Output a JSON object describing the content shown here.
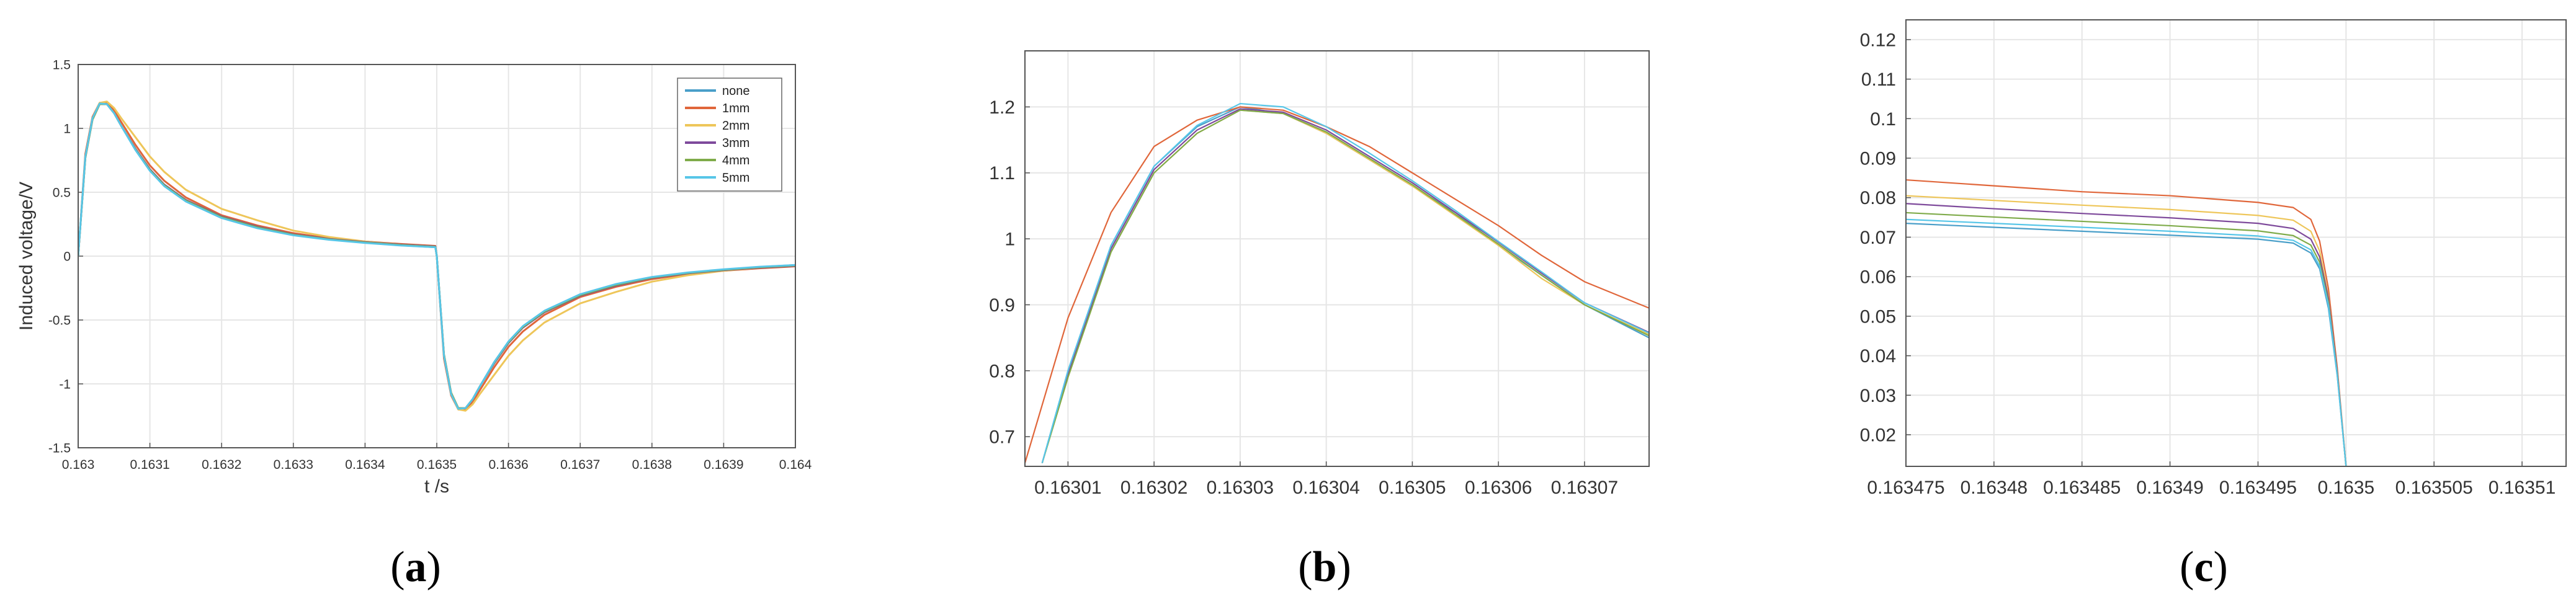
{
  "colors": {
    "none": "#4a9fc9",
    "1mm": "#e0663a",
    "2mm": "#eec65a",
    "3mm": "#7e4a9b",
    "4mm": "#7fab4a",
    "5mm": "#57c6e8",
    "grid": "#e6e6e6",
    "axis": "#555555"
  },
  "captions": [
    {
      "open": "(",
      "letter": "a",
      "close": ")"
    },
    {
      "open": "(",
      "letter": "b",
      "close": ")"
    },
    {
      "open": "(",
      "letter": "c",
      "close": ")"
    }
  ],
  "chart_data": [
    {
      "id": "a",
      "type": "line",
      "xlabel": "t /s",
      "ylabel": "Induced voltage/V",
      "xlim": [
        0.163,
        0.164
      ],
      "ylim": [
        -1.5,
        1.5
      ],
      "xticks": [
        "0.163",
        "0.1631",
        "0.1632",
        "0.1633",
        "0.1634",
        "0.1635",
        "0.1636",
        "0.1637",
        "0.1638",
        "0.1639",
        "0.164"
      ],
      "yticks": [
        "-1.5",
        "-1",
        "-0.5",
        "0",
        "0.5",
        "1",
        "1.5"
      ],
      "grid": true,
      "legend_position": "top-right",
      "legend": [
        "none",
        "1mm",
        "2mm",
        "3mm",
        "4mm",
        "5mm"
      ],
      "series": [
        {
          "name": "none",
          "x": [
            0.163,
            0.16301,
            0.16302,
            0.16303,
            0.16304,
            0.16305,
            0.16306,
            0.16308,
            0.1631,
            0.16312,
            0.16315,
            0.1632,
            0.16325,
            0.1633,
            0.16335,
            0.1634,
            0.16345,
            0.163498,
            0.1635,
            0.16351,
            0.16352,
            0.16353,
            0.16354,
            0.16355,
            0.16356,
            0.16358,
            0.1636,
            0.16362,
            0.16365,
            0.1637,
            0.16375,
            0.1638,
            0.16385,
            0.1639,
            0.16395,
            0.164
          ],
          "y": [
            0.0,
            0.78,
            1.08,
            1.195,
            1.19,
            1.12,
            1.02,
            0.83,
            0.67,
            0.55,
            0.43,
            0.3,
            0.22,
            0.165,
            0.13,
            0.105,
            0.085,
            0.07,
            0.0,
            -0.78,
            -1.08,
            -1.195,
            -1.19,
            -1.12,
            -1.02,
            -0.83,
            -0.67,
            -0.55,
            -0.43,
            -0.3,
            -0.22,
            -0.165,
            -0.13,
            -0.105,
            -0.085,
            -0.07
          ]
        },
        {
          "name": "1mm",
          "x": [
            0.163,
            0.16301,
            0.16302,
            0.16303,
            0.16304,
            0.16305,
            0.16306,
            0.16308,
            0.1631,
            0.16312,
            0.16315,
            0.1632,
            0.16325,
            0.1633,
            0.16335,
            0.1634,
            0.16345,
            0.163498,
            0.1635,
            0.16351,
            0.16352,
            0.16353,
            0.16354,
            0.16355,
            0.16356,
            0.16358,
            0.1636,
            0.16362,
            0.16365,
            0.1637,
            0.16375,
            0.1638,
            0.16385,
            0.1639,
            0.16395,
            0.164
          ],
          "y": [
            0.0,
            0.8,
            1.09,
            1.2,
            1.2,
            1.14,
            1.05,
            0.87,
            0.71,
            0.59,
            0.46,
            0.32,
            0.24,
            0.18,
            0.14,
            0.115,
            0.095,
            0.08,
            0.0,
            -0.8,
            -1.09,
            -1.2,
            -1.2,
            -1.14,
            -1.05,
            -0.87,
            -0.71,
            -0.59,
            -0.46,
            -0.32,
            -0.24,
            -0.18,
            -0.14,
            -0.115,
            -0.095,
            -0.08
          ]
        },
        {
          "name": "2mm",
          "x": [
            0.163,
            0.16301,
            0.16302,
            0.16303,
            0.16304,
            0.16305,
            0.16306,
            0.16308,
            0.1631,
            0.16312,
            0.16315,
            0.1632,
            0.16325,
            0.1633,
            0.16335,
            0.1634,
            0.16345,
            0.163498,
            0.1635,
            0.16351,
            0.16352,
            0.16353,
            0.16354,
            0.16355,
            0.16356,
            0.16358,
            0.1636,
            0.16362,
            0.16365,
            0.1637,
            0.16375,
            0.1638,
            0.16385,
            0.1639,
            0.16395,
            0.164
          ],
          "y": [
            0.0,
            0.77,
            1.08,
            1.2,
            1.21,
            1.16,
            1.08,
            0.93,
            0.78,
            0.66,
            0.52,
            0.37,
            0.28,
            0.2,
            0.15,
            0.115,
            0.09,
            0.075,
            0.0,
            -0.77,
            -1.08,
            -1.2,
            -1.21,
            -1.16,
            -1.08,
            -0.93,
            -0.78,
            -0.66,
            -0.52,
            -0.37,
            -0.28,
            -0.2,
            -0.15,
            -0.115,
            -0.09,
            -0.075
          ]
        },
        {
          "name": "3mm",
          "x": [
            0.163,
            0.16301,
            0.16302,
            0.16303,
            0.16304,
            0.16305,
            0.16306,
            0.16308,
            0.1631,
            0.16312,
            0.16315,
            0.1632,
            0.16325,
            0.1633,
            0.16335,
            0.1634,
            0.16345,
            0.163498,
            0.1635,
            0.16351,
            0.16352,
            0.16353,
            0.16354,
            0.16355,
            0.16356,
            0.16358,
            0.1636,
            0.16362,
            0.16365,
            0.1637,
            0.16375,
            0.1638,
            0.16385,
            0.1639,
            0.16395,
            0.164
          ],
          "y": [
            0.0,
            0.77,
            1.07,
            1.19,
            1.19,
            1.12,
            1.02,
            0.84,
            0.68,
            0.56,
            0.44,
            0.31,
            0.23,
            0.17,
            0.135,
            0.11,
            0.09,
            0.076,
            0.0,
            -0.77,
            -1.07,
            -1.19,
            -1.19,
            -1.12,
            -1.02,
            -0.84,
            -0.68,
            -0.56,
            -0.44,
            -0.31,
            -0.23,
            -0.17,
            -0.135,
            -0.11,
            -0.09,
            -0.076
          ]
        },
        {
          "name": "4mm",
          "x": [
            0.163,
            0.16301,
            0.16302,
            0.16303,
            0.16304,
            0.16305,
            0.16306,
            0.16308,
            0.1631,
            0.16312,
            0.16315,
            0.1632,
            0.16325,
            0.1633,
            0.16335,
            0.1634,
            0.16345,
            0.163498,
            0.1635,
            0.16351,
            0.16352,
            0.16353,
            0.16354,
            0.16355,
            0.16356,
            0.16358,
            0.1636,
            0.16362,
            0.16365,
            0.1637,
            0.16375,
            0.1638,
            0.16385,
            0.1639,
            0.16395,
            0.164
          ],
          "y": [
            0.0,
            0.77,
            1.07,
            1.19,
            1.19,
            1.12,
            1.02,
            0.835,
            0.675,
            0.555,
            0.435,
            0.305,
            0.225,
            0.167,
            0.132,
            0.107,
            0.087,
            0.073,
            0.0,
            -0.77,
            -1.07,
            -1.19,
            -1.19,
            -1.12,
            -1.02,
            -0.835,
            -0.675,
            -0.555,
            -0.435,
            -0.305,
            -0.225,
            -0.167,
            -0.132,
            -0.107,
            -0.087,
            -0.073
          ]
        },
        {
          "name": "5mm",
          "x": [
            0.163,
            0.16301,
            0.16302,
            0.16303,
            0.16304,
            0.16305,
            0.16306,
            0.16308,
            0.1631,
            0.16312,
            0.16315,
            0.1632,
            0.16325,
            0.1633,
            0.16335,
            0.1634,
            0.16345,
            0.163498,
            0.1635,
            0.16351,
            0.16352,
            0.16353,
            0.16354,
            0.16355,
            0.16356,
            0.16358,
            0.1636,
            0.16362,
            0.16365,
            0.1637,
            0.16375,
            0.1638,
            0.16385,
            0.1639,
            0.16395,
            0.164
          ],
          "y": [
            0.0,
            0.78,
            1.08,
            1.195,
            1.19,
            1.12,
            1.02,
            0.83,
            0.668,
            0.548,
            0.428,
            0.298,
            0.218,
            0.163,
            0.128,
            0.103,
            0.083,
            0.07,
            0.0,
            -0.78,
            -1.08,
            -1.195,
            -1.19,
            -1.12,
            -1.02,
            -0.83,
            -0.668,
            -0.548,
            -0.428,
            -0.298,
            -0.218,
            -0.163,
            -0.128,
            -0.103,
            -0.083,
            -0.07
          ]
        }
      ]
    },
    {
      "id": "b",
      "type": "line",
      "xlabel": "",
      "ylabel": "",
      "xlim": [
        0.163005,
        0.1630775
      ],
      "ylim": [
        0.655,
        1.285
      ],
      "xticks": [
        "0.16301",
        "0.16302",
        "0.16303",
        "0.16304",
        "0.16305",
        "0.16306",
        "0.16307"
      ],
      "yticks": [
        "0.7",
        "0.8",
        "0.9",
        "1",
        "1.1",
        "1.2"
      ],
      "grid": true,
      "series": [
        {
          "name": "none",
          "x": [
            0.163007,
            0.16301,
            0.163015,
            0.16302,
            0.163025,
            0.16303,
            0.163035,
            0.16304,
            0.163045,
            0.16305,
            0.163055,
            0.16306,
            0.163065,
            0.16307,
            0.1630775
          ],
          "y": [
            0.66,
            0.8,
            0.99,
            1.11,
            1.17,
            1.2,
            1.19,
            1.16,
            1.12,
            1.08,
            1.04,
            0.99,
            0.945,
            0.9,
            0.85
          ]
        },
        {
          "name": "1mm",
          "x": [
            0.163005,
            0.16301,
            0.163015,
            0.16302,
            0.163025,
            0.16303,
            0.163035,
            0.16304,
            0.163045,
            0.16305,
            0.163055,
            0.16306,
            0.163065,
            0.16307,
            0.1630775
          ],
          "y": [
            0.66,
            0.88,
            1.04,
            1.14,
            1.18,
            1.2,
            1.195,
            1.17,
            1.14,
            1.1,
            1.06,
            1.02,
            0.975,
            0.935,
            0.895
          ]
        },
        {
          "name": "2mm",
          "x": [
            0.163007,
            0.16301,
            0.163015,
            0.16302,
            0.163025,
            0.16303,
            0.163035,
            0.16304,
            0.163045,
            0.16305,
            0.163055,
            0.16306,
            0.163065,
            0.16307,
            0.1630775
          ],
          "y": [
            0.66,
            0.79,
            0.98,
            1.1,
            1.16,
            1.195,
            1.19,
            1.16,
            1.12,
            1.08,
            1.035,
            0.99,
            0.94,
            0.9,
            0.855
          ]
        },
        {
          "name": "3mm",
          "x": [
            0.163007,
            0.16301,
            0.163015,
            0.16302,
            0.163025,
            0.16303,
            0.163035,
            0.16304,
            0.163045,
            0.16305,
            0.163055,
            0.16306,
            0.163065,
            0.16307,
            0.1630775
          ],
          "y": [
            0.66,
            0.795,
            0.985,
            1.105,
            1.165,
            1.197,
            1.192,
            1.165,
            1.125,
            1.085,
            1.04,
            0.995,
            0.948,
            0.903,
            0.858
          ]
        },
        {
          "name": "4mm",
          "x": [
            0.163007,
            0.16301,
            0.163015,
            0.16302,
            0.163025,
            0.16303,
            0.163035,
            0.16304,
            0.163045,
            0.16305,
            0.163055,
            0.16306,
            0.163065,
            0.16307,
            0.1630775
          ],
          "y": [
            0.66,
            0.79,
            0.98,
            1.1,
            1.16,
            1.195,
            1.19,
            1.162,
            1.122,
            1.082,
            1.037,
            0.992,
            0.945,
            0.9,
            0.853
          ]
        },
        {
          "name": "5mm",
          "x": [
            0.163007,
            0.16301,
            0.163015,
            0.16302,
            0.163025,
            0.16303,
            0.163035,
            0.16304,
            0.163045,
            0.16305,
            0.163055,
            0.16306,
            0.163065,
            0.16307,
            0.1630775
          ],
          "y": [
            0.66,
            0.8,
            0.99,
            1.11,
            1.172,
            1.205,
            1.2,
            1.17,
            1.13,
            1.088,
            1.043,
            0.996,
            0.95,
            0.903,
            0.857
          ]
        }
      ]
    },
    {
      "id": "c",
      "type": "line",
      "xlabel": "",
      "ylabel": "",
      "xlim": [
        0.163475,
        0.1635125
      ],
      "ylim": [
        0.012,
        0.125
      ],
      "xticks": [
        "0.163475",
        "0.16348",
        "0.163485",
        "0.16349",
        "0.163495",
        "0.1635",
        "0.163505",
        "0.16351"
      ],
      "yticks": [
        "0.02",
        "0.03",
        "0.04",
        "0.05",
        "0.06",
        "0.07",
        "0.08",
        "0.09",
        "0.1",
        "0.11",
        "0.12"
      ],
      "grid": true,
      "series": [
        {
          "name": "none",
          "x": [
            0.163475,
            0.16348,
            0.163485,
            0.16349,
            0.163495,
            0.163497,
            0.163498,
            0.1634985,
            0.163499,
            0.1634995,
            0.1635
          ],
          "y": [
            0.0735,
            0.0725,
            0.0715,
            0.0705,
            0.0695,
            0.0685,
            0.066,
            0.062,
            0.052,
            0.035,
            0.012
          ]
        },
        {
          "name": "1mm",
          "x": [
            0.163475,
            0.16348,
            0.163485,
            0.16349,
            0.163495,
            0.163497,
            0.163498,
            0.1634985,
            0.163499,
            0.1634995,
            0.1635
          ],
          "y": [
            0.0845,
            0.083,
            0.0815,
            0.0805,
            0.0788,
            0.0775,
            0.0745,
            0.069,
            0.057,
            0.037,
            0.012
          ]
        },
        {
          "name": "2mm",
          "x": [
            0.163475,
            0.16348,
            0.163485,
            0.16349,
            0.163495,
            0.163497,
            0.163498,
            0.1634985,
            0.163499,
            0.1634995,
            0.1635
          ],
          "y": [
            0.0805,
            0.0793,
            0.0781,
            0.077,
            0.0755,
            0.0743,
            0.0715,
            0.0665,
            0.055,
            0.036,
            0.012
          ]
        },
        {
          "name": "3mm",
          "x": [
            0.163475,
            0.16348,
            0.163485,
            0.16349,
            0.163495,
            0.163497,
            0.163498,
            0.1634985,
            0.163499,
            0.1634995,
            0.1635
          ],
          "y": [
            0.0785,
            0.0772,
            0.076,
            0.0749,
            0.0735,
            0.0722,
            0.0695,
            0.065,
            0.0545,
            0.036,
            0.012
          ]
        },
        {
          "name": "4mm",
          "x": [
            0.163475,
            0.16348,
            0.163485,
            0.16349,
            0.163495,
            0.163497,
            0.163498,
            0.1634985,
            0.163499,
            0.1634995,
            0.1635
          ],
          "y": [
            0.0762,
            0.0751,
            0.074,
            0.0729,
            0.0716,
            0.0704,
            0.068,
            0.0637,
            0.0535,
            0.0355,
            0.012
          ]
        },
        {
          "name": "5mm",
          "x": [
            0.163475,
            0.16348,
            0.163485,
            0.16349,
            0.163495,
            0.163497,
            0.163498,
            0.1634985,
            0.163499,
            0.1634995,
            0.1635
          ],
          "y": [
            0.0745,
            0.0735,
            0.0725,
            0.0715,
            0.0703,
            0.0692,
            0.0668,
            0.0627,
            0.0528,
            0.0352,
            0.012
          ]
        }
      ]
    }
  ]
}
